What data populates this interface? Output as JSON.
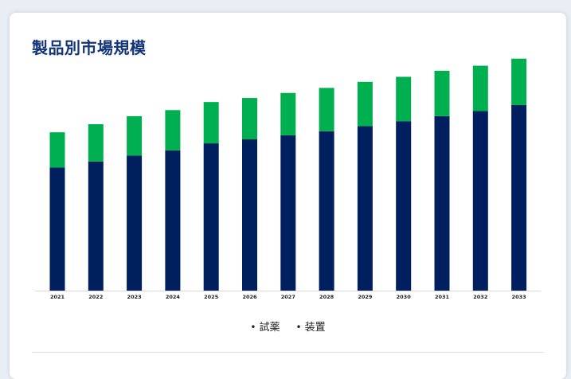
{
  "header": {
    "title": "製品別市場規模"
  },
  "colors": {
    "card_background": "#ffffff",
    "title": "#12357a",
    "series_1": "#001f5f",
    "series_2": "#00b050"
  },
  "chart_data": {
    "type": "bar",
    "stacked": true,
    "categories": [
      "2021",
      "2022",
      "2023",
      "2024",
      "2025",
      "2026",
      "2027",
      "2028",
      "2029",
      "2030",
      "2031",
      "2032",
      "2033"
    ],
    "series": [
      {
        "name": "試薬",
        "color": "#001f5f",
        "values": [
          122,
          128,
          134,
          139,
          146,
          150,
          154,
          158,
          163,
          168,
          173,
          178,
          184
        ]
      },
      {
        "name": "装置",
        "color": "#00b050",
        "values": [
          35,
          37,
          39,
          40,
          41,
          41,
          42,
          43,
          44,
          44,
          45,
          45,
          46
        ]
      }
    ],
    "title": "",
    "xlabel": "",
    "ylabel": "",
    "ylim": [
      0,
      240
    ],
    "grid": false,
    "y_axis_visible": false,
    "legend": "bottom-center"
  }
}
